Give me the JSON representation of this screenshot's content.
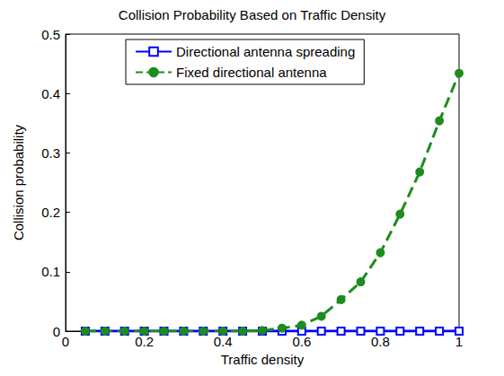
{
  "chart_data": {
    "type": "line",
    "title": "Collision Probability Based on Traffic Density",
    "x_label": "Traffic density",
    "y_label": "Collision probability",
    "x": [
      0.05,
      0.1,
      0.15,
      0.2,
      0.25,
      0.3,
      0.35,
      0.4,
      0.45,
      0.5,
      0.55,
      0.6,
      0.65,
      0.7,
      0.75,
      0.8,
      0.85,
      0.9,
      0.95,
      1.0
    ],
    "series": [
      {
        "name": "Directional antenna spreading",
        "color": "#0000ff",
        "marker": "square",
        "line_style": "solid",
        "values": [
          0,
          0,
          0,
          0,
          0,
          0,
          0,
          0,
          0,
          0,
          0,
          0,
          0,
          0,
          0,
          0,
          0,
          0,
          0,
          0
        ]
      },
      {
        "name": "Fixed directional antenna",
        "color": "#1e8c1e",
        "marker": "circle",
        "line_style": "dashed",
        "values": [
          0,
          0,
          0,
          0,
          0,
          0,
          0,
          0,
          0,
          0.001,
          0.005,
          0.01,
          0.025,
          0.053,
          0.083,
          0.132,
          0.197,
          0.268,
          0.354,
          0.434
        ]
      }
    ],
    "xlim": [
      0,
      1
    ],
    "xticks": [
      0,
      0.2,
      0.4,
      0.6,
      0.8,
      1
    ],
    "ylim": [
      0,
      0.5
    ],
    "yticks": [
      0,
      0.1,
      0.2,
      0.3,
      0.4,
      0.5
    ],
    "grid": false,
    "legend": "top"
  }
}
